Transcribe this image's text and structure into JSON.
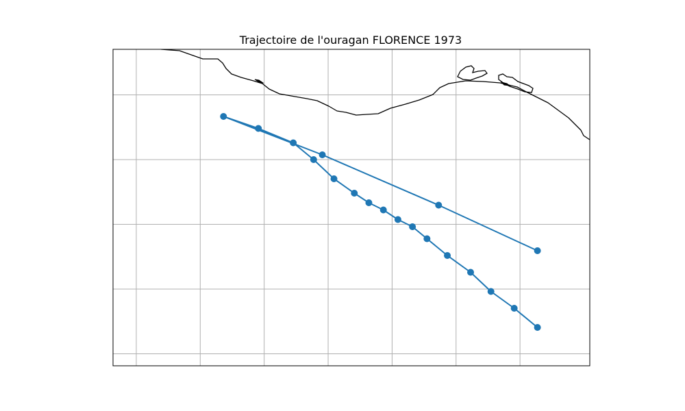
{
  "title": "Trajectoire de l'ouragan FLORENCE 1973",
  "chart_data": {
    "type": "line",
    "title": "Trajectoire de l'ouragan FLORENCE 1973",
    "grid": true,
    "series": [
      {
        "marker": "circle",
        "points": [
          [
            -100.6,
            13.6
          ],
          [
            -101.0,
            14.0
          ],
          [
            -101.4,
            14.35
          ],
          [
            -101.75,
            14.75
          ],
          [
            -102.15,
            15.1
          ],
          [
            -102.5,
            15.45
          ],
          [
            -102.75,
            15.7
          ],
          [
            -103.0,
            15.85
          ],
          [
            -103.25,
            16.05
          ],
          [
            -103.5,
            16.2
          ],
          [
            -103.75,
            16.4
          ],
          [
            -104.1,
            16.7
          ],
          [
            -104.45,
            17.1
          ],
          [
            -104.8,
            17.45
          ],
          [
            -105.4,
            17.75
          ],
          [
            -106.0,
            18.0
          ],
          [
            -104.3,
            17.2
          ],
          [
            -102.3,
            16.15
          ],
          [
            -100.6,
            15.2
          ]
        ]
      }
    ]
  },
  "colors": {
    "track": "#1f77b4",
    "coastline": "#000000",
    "grid": "#b0b0b0",
    "frame": "#000000"
  }
}
